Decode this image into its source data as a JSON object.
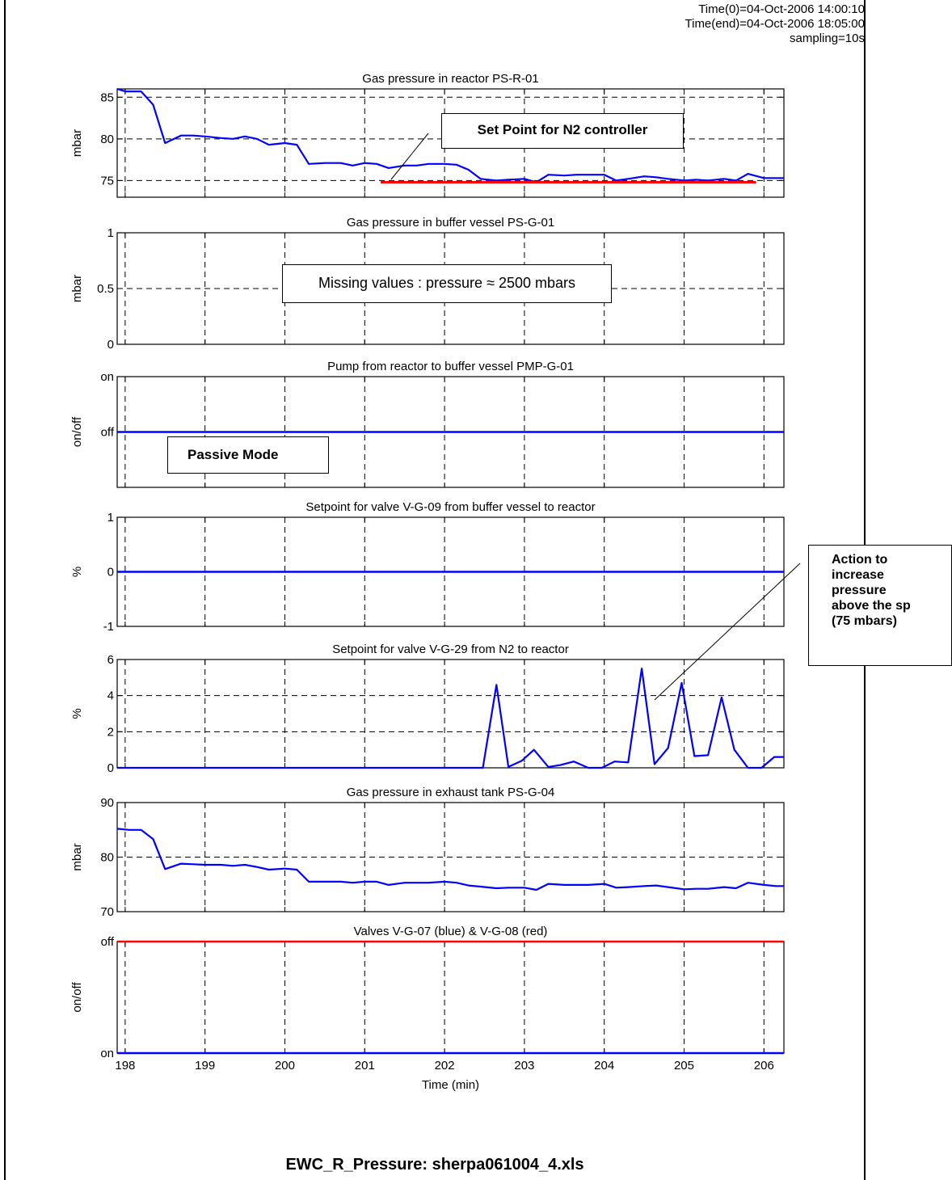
{
  "header": {
    "time0": "Time(0)=04-Oct-2006 14:00:10",
    "time_end": "Time(end)=04-Oct-2006 18:05:00",
    "sampling": "sampling=10s"
  },
  "footer_title": "EWC_R_Pressure: sherpa061004_4.xls",
  "x_axis": {
    "label": "Time (min)",
    "range": [
      197.9,
      206.25
    ],
    "ticks": [
      198,
      199,
      200,
      201,
      202,
      203,
      204,
      205,
      206
    ],
    "tick_labels": [
      "198",
      "199",
      "200",
      "201",
      "202",
      "203",
      "204",
      "205",
      "206"
    ]
  },
  "annotations": {
    "setpoint_n2": "Set Point for N2 controller",
    "missing_values": "Missing values : pressure ≈ 2500 mbars",
    "passive_mode": "Passive Mode",
    "action_lines": [
      "Action to",
      "increase",
      "pressure",
      "above the sp",
      "(75 mbars)"
    ]
  },
  "colors": {
    "blue": "#0000ff",
    "red": "#ff0000",
    "grid": "#000000"
  },
  "chart_data": [
    {
      "type": "line",
      "title": "Gas pressure in reactor PS-R-01",
      "ylabel": "mbar",
      "ylim": [
        73,
        86
      ],
      "yticks": [
        75,
        80,
        85
      ],
      "ytick_labels": [
        "75",
        "80",
        "85"
      ],
      "grid": true,
      "x": [
        197.9,
        198.0,
        198.2,
        198.35,
        198.5,
        198.7,
        198.85,
        199.0,
        199.2,
        199.35,
        199.5,
        199.65,
        199.8,
        200.0,
        200.15,
        200.3,
        200.5,
        200.7,
        200.85,
        201.0,
        201.15,
        201.3,
        201.5,
        201.65,
        201.8,
        202.0,
        202.15,
        202.3,
        202.45,
        202.65,
        202.8,
        203.0,
        203.15,
        203.3,
        203.5,
        203.65,
        203.8,
        204.0,
        204.15,
        204.3,
        204.5,
        204.65,
        204.8,
        205.0,
        205.15,
        205.3,
        205.5,
        205.65,
        205.8,
        206.0,
        206.15,
        206.25
      ],
      "series": [
        {
          "name": "",
          "color": "#0000ff",
          "values": [
            86.0,
            85.7,
            85.7,
            84.1,
            79.5,
            80.4,
            80.4,
            80.3,
            80.1,
            80.0,
            80.3,
            80.0,
            79.3,
            79.5,
            79.3,
            77.0,
            77.1,
            77.1,
            76.8,
            77.1,
            77.0,
            76.5,
            76.8,
            76.8,
            77.0,
            77.0,
            76.9,
            76.3,
            75.2,
            75.0,
            75.1,
            75.2,
            74.8,
            75.7,
            75.6,
            75.7,
            75.7,
            75.7,
            75.0,
            75.2,
            75.5,
            75.4,
            75.2,
            75.0,
            75.1,
            75.0,
            75.2,
            75.0,
            75.8,
            75.3,
            75.3,
            75.3
          ]
        }
      ],
      "setpoint": {
        "value": 74.8,
        "x_from": 201.2,
        "x_to": 205.9,
        "color": "#ff0000"
      }
    },
    {
      "type": "line",
      "title": "Gas pressure in buffer vessel PS-G-01",
      "ylabel": "mbar",
      "ylim": [
        0,
        1
      ],
      "yticks": [
        0,
        0.5,
        1
      ],
      "ytick_labels": [
        "0",
        "0.5",
        "1"
      ],
      "grid": true,
      "series": []
    },
    {
      "type": "line",
      "title": "Pump from reactor to buffer vessel PMP-G-01",
      "ylabel": "on/off",
      "ylim": [
        -1,
        1
      ],
      "yticks": [
        0,
        1
      ],
      "ytick_labels": [
        "off",
        "on"
      ],
      "grid": true,
      "series": [
        {
          "name": "",
          "color": "#0000ff",
          "constant": 0
        }
      ]
    },
    {
      "type": "line",
      "title": "Setpoint for valve V-G-09 from buffer vessel to reactor",
      "ylabel": "%",
      "ylim": [
        -1,
        1
      ],
      "yticks": [
        -1,
        0,
        1
      ],
      "ytick_labels": [
        "-1",
        "0",
        "1"
      ],
      "grid": true,
      "series": [
        {
          "name": "",
          "color": "#0000ff",
          "constant": 0
        }
      ]
    },
    {
      "type": "line",
      "title": "Setpoint for valve V-G-29 from N2 to reactor",
      "ylabel": "%",
      "ylim": [
        0,
        6
      ],
      "yticks": [
        0,
        2,
        4,
        6
      ],
      "ytick_labels": [
        "0",
        "2",
        "4",
        "6"
      ],
      "grid": true,
      "x": [
        197.9,
        202.48,
        202.65,
        202.8,
        202.97,
        203.12,
        203.3,
        203.45,
        203.62,
        203.8,
        203.97,
        204.13,
        204.3,
        204.47,
        204.63,
        204.8,
        204.97,
        205.13,
        205.3,
        205.47,
        205.63,
        205.8,
        205.97,
        206.13,
        206.25
      ],
      "series": [
        {
          "name": "",
          "color": "#0000ff",
          "values": [
            0,
            0,
            4.6,
            0.05,
            0.4,
            1.0,
            0.05,
            0.15,
            0.35,
            0,
            0,
            0.35,
            0.3,
            5.5,
            0.2,
            1.1,
            4.7,
            0.65,
            0.7,
            3.9,
            1.0,
            0,
            0,
            0.6,
            0.6
          ]
        }
      ]
    },
    {
      "type": "line",
      "title": "Gas pressure in exhaust tank PS-G-04",
      "ylabel": "mbar",
      "ylim": [
        70,
        90
      ],
      "yticks": [
        70,
        80,
        90
      ],
      "ytick_labels": [
        "70",
        "80",
        "90"
      ],
      "grid": true,
      "x": [
        197.9,
        198.05,
        198.2,
        198.35,
        198.5,
        198.7,
        198.85,
        199.0,
        199.2,
        199.35,
        199.5,
        199.65,
        199.8,
        200.0,
        200.15,
        200.3,
        200.5,
        200.7,
        200.85,
        201.0,
        201.15,
        201.3,
        201.5,
        201.65,
        201.8,
        202.0,
        202.15,
        202.3,
        202.45,
        202.65,
        202.8,
        203.0,
        203.15,
        203.3,
        203.5,
        203.65,
        203.8,
        204.0,
        204.15,
        204.3,
        204.5,
        204.65,
        204.8,
        205.0,
        205.15,
        205.3,
        205.5,
        205.65,
        205.8,
        206.0,
        206.15,
        206.25
      ],
      "series": [
        {
          "name": "",
          "color": "#0000ff",
          "values": [
            85.2,
            85.0,
            85.0,
            83.3,
            77.8,
            78.8,
            78.7,
            78.6,
            78.6,
            78.4,
            78.6,
            78.2,
            77.7,
            77.9,
            77.7,
            75.5,
            75.5,
            75.5,
            75.3,
            75.5,
            75.5,
            74.9,
            75.3,
            75.3,
            75.3,
            75.5,
            75.3,
            74.8,
            74.6,
            74.3,
            74.4,
            74.4,
            74.0,
            75.1,
            74.9,
            74.9,
            74.9,
            75.1,
            74.4,
            74.5,
            74.7,
            74.8,
            74.5,
            74.1,
            74.2,
            74.2,
            74.5,
            74.3,
            75.3,
            74.9,
            74.7,
            74.7
          ]
        }
      ]
    },
    {
      "type": "line",
      "title": "Valves V-G-07 (blue) & V-G-08 (red)",
      "ylabel": "on/off",
      "ylim": [
        0,
        1
      ],
      "yticks": [
        0,
        1
      ],
      "ytick_labels": [
        "on",
        "off"
      ],
      "grid": true,
      "series": [
        {
          "name": "V-G-07",
          "color": "#0000ff",
          "constant": 0
        },
        {
          "name": "V-G-08",
          "color": "#ff0000",
          "constant": 1
        }
      ]
    }
  ]
}
